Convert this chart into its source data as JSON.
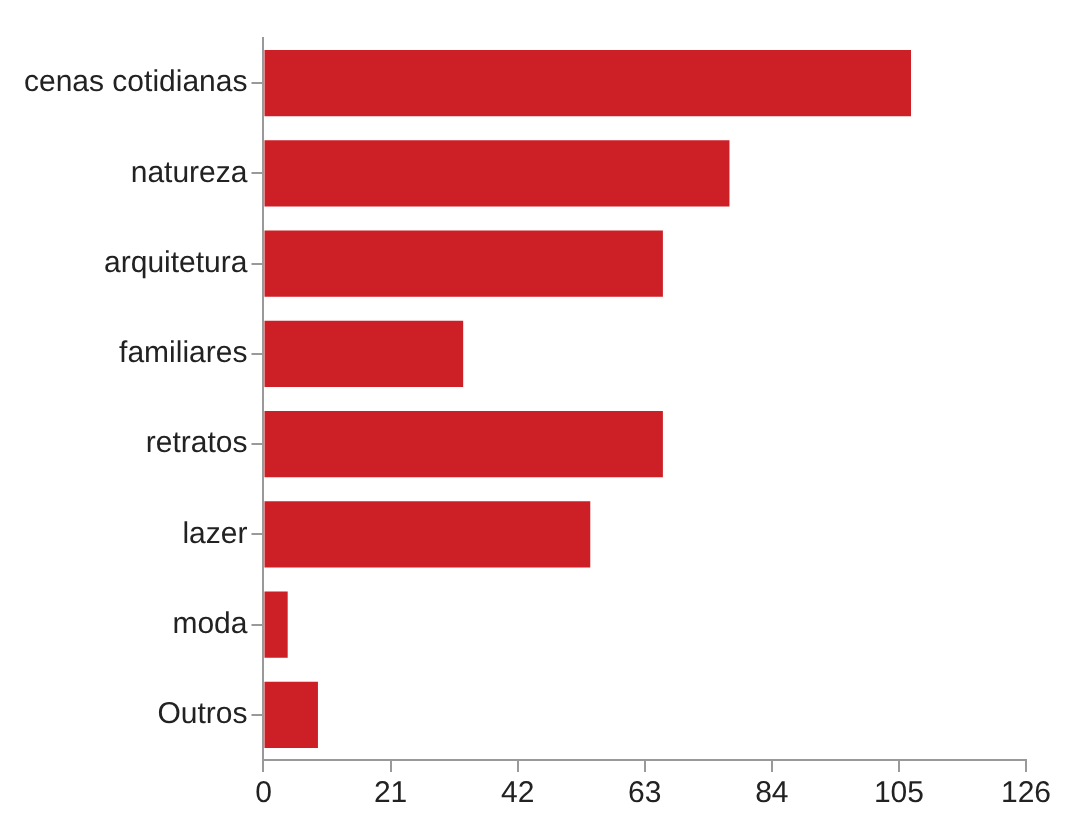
{
  "chart_data": {
    "type": "bar",
    "orientation": "horizontal",
    "categories": [
      "cenas cotidianas",
      "natureza",
      "arquitetura",
      "familiares",
      "retratos",
      "lazer",
      "moda",
      "Outros"
    ],
    "values": [
      107,
      77,
      66,
      33,
      66,
      54,
      4,
      9
    ],
    "color": "#cc1f26",
    "xlim": [
      0,
      126
    ],
    "xticks": [
      0,
      21,
      42,
      63,
      84,
      105,
      126
    ],
    "grid": false,
    "legend": false
  }
}
